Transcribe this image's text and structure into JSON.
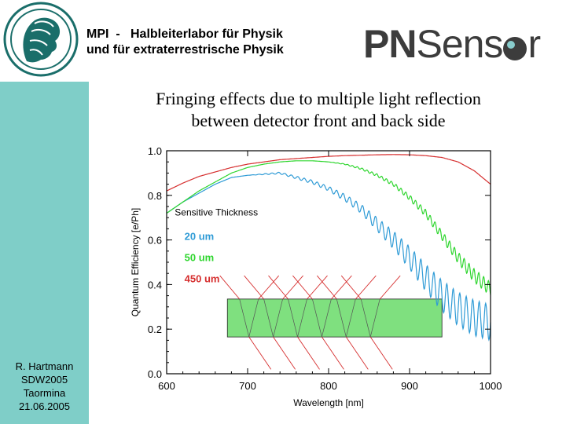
{
  "header": {
    "institute_line1": "MPI  -   Halbleiterlabor für Physik",
    "institute_line2": "und für extraterrestrische Physik",
    "brand_pn": "PN",
    "brand_sensor": "Sens",
    "brand_r": "r"
  },
  "slide": {
    "title_line1": "Fringing effects due to multiple light reflection",
    "title_line2": "between detector front and back side"
  },
  "author": {
    "name": "R. Hartmann",
    "event": "SDW2005",
    "place": "Taormina",
    "date": "21.06.2005"
  },
  "colors": {
    "sidebar": "#7fcec8",
    "series_20um": "#2f9bd6",
    "series_50um": "#2fd62f",
    "series_450um": "#d62f2f",
    "detector_fill": "#7fe07f"
  },
  "chart_data": {
    "type": "line",
    "xlabel": "Wavelength [nm]",
    "ylabel": "Quantum Efficiency [e/Ph]",
    "xlim": [
      600,
      1000
    ],
    "ylim": [
      0.0,
      1.0
    ],
    "xticks": [
      "600",
      "700",
      "800",
      "900",
      "1000"
    ],
    "yticks": [
      "0.0",
      "0.2",
      "0.4",
      "0.6",
      "0.8",
      "1.0"
    ],
    "legend_title": "Sensitive Thickness",
    "series": [
      {
        "name": "20 um",
        "x": [
          600,
          620,
          640,
          660,
          680,
          700,
          720,
          740,
          760,
          780,
          800,
          820,
          840,
          860,
          880,
          900,
          920,
          940,
          960,
          980,
          1000
        ],
        "y": [
          0.72,
          0.77,
          0.81,
          0.85,
          0.88,
          0.89,
          0.895,
          0.9,
          0.88,
          0.86,
          0.83,
          0.79,
          0.74,
          0.67,
          0.6,
          0.52,
          0.43,
          0.35,
          0.29,
          0.25,
          0.23
        ],
        "fringe_amp": [
          0,
          0,
          0,
          0,
          0,
          0,
          0.002,
          0.004,
          0.006,
          0.008,
          0.01,
          0.015,
          0.02,
          0.03,
          0.04,
          0.05,
          0.06,
          0.07,
          0.075,
          0.08,
          0.08
        ]
      },
      {
        "name": "50 um",
        "x": [
          600,
          620,
          640,
          660,
          680,
          700,
          720,
          740,
          760,
          780,
          800,
          820,
          840,
          860,
          880,
          900,
          920,
          940,
          960,
          980,
          1000
        ],
        "y": [
          0.72,
          0.77,
          0.82,
          0.86,
          0.9,
          0.925,
          0.94,
          0.95,
          0.955,
          0.955,
          0.95,
          0.94,
          0.92,
          0.89,
          0.85,
          0.79,
          0.72,
          0.62,
          0.52,
          0.44,
          0.38
        ],
        "fringe_amp": [
          0,
          0,
          0,
          0,
          0,
          0,
          0,
          0,
          0,
          0,
          0,
          0.002,
          0.004,
          0.006,
          0.008,
          0.012,
          0.016,
          0.02,
          0.025,
          0.03,
          0.03
        ]
      },
      {
        "name": "450 um",
        "x": [
          600,
          620,
          640,
          660,
          680,
          700,
          720,
          740,
          760,
          780,
          800,
          820,
          840,
          860,
          880,
          900,
          920,
          940,
          960,
          980,
          1000
        ],
        "y": [
          0.82,
          0.855,
          0.885,
          0.905,
          0.925,
          0.94,
          0.95,
          0.96,
          0.965,
          0.97,
          0.975,
          0.978,
          0.98,
          0.982,
          0.983,
          0.982,
          0.978,
          0.97,
          0.95,
          0.91,
          0.85
        ],
        "fringe_amp": [
          0,
          0,
          0,
          0,
          0,
          0,
          0,
          0,
          0,
          0,
          0,
          0,
          0,
          0,
          0,
          0,
          0,
          0,
          0,
          0,
          0
        ]
      }
    ],
    "legend": "left",
    "grid": false
  }
}
